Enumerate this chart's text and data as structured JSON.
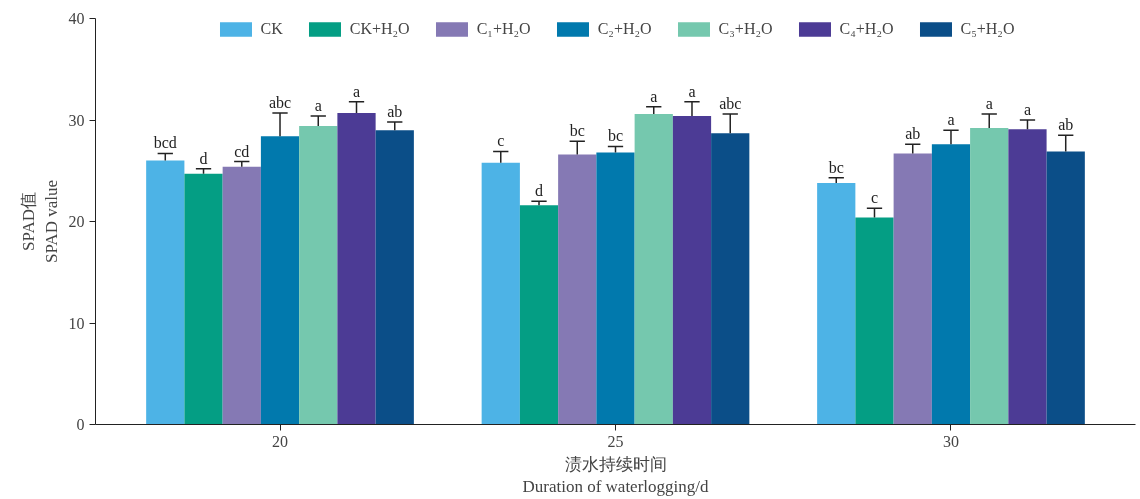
{
  "chart_data": {
    "type": "bar",
    "xlabel": "渍水持续时间\nDuration of waterlogging/d",
    "ylabel": "SPAD值\nSPAD value",
    "categories": [
      "20",
      "25",
      "30"
    ],
    "ylim": [
      0,
      40
    ],
    "yticks": [
      0,
      10,
      20,
      30,
      40
    ],
    "grid": false,
    "legend": "top",
    "series": [
      {
        "name": "CK",
        "color": "#4db3e6",
        "values": [
          26.0,
          25.8,
          23.8
        ],
        "errors": [
          [
            26.0,
            26.7
          ],
          [
            25.8,
            26.9
          ],
          [
            23.8,
            24.3
          ]
        ],
        "value_labels": [
          "bcd",
          "c",
          "bc"
        ]
      },
      {
        "name": "CK+H₂O",
        "color": "#049e84",
        "values": [
          24.7,
          21.6,
          20.4
        ],
        "errors": [
          [
            24.7,
            25.2
          ],
          [
            21.6,
            22.0
          ],
          [
            20.4,
            21.3
          ]
        ],
        "value_labels": [
          "d",
          "d",
          "c"
        ]
      },
      {
        "name": "C₁+H₂O",
        "color": "#8579b4",
        "values": [
          25.4,
          26.6,
          26.7
        ],
        "errors": [
          [
            25.4,
            25.9
          ],
          [
            26.6,
            27.9
          ],
          [
            26.7,
            27.6
          ]
        ],
        "value_labels": [
          "cd",
          "bc",
          "ab"
        ]
      },
      {
        "name": "C₂+H₂O",
        "color": "#0179ad",
        "values": [
          28.4,
          26.8,
          27.6
        ],
        "errors": [
          [
            28.4,
            30.7
          ],
          [
            26.8,
            27.4
          ],
          [
            27.6,
            29.0
          ]
        ],
        "value_labels": [
          "abc",
          "bc",
          "a"
        ]
      },
      {
        "name": "C₃+H₂O",
        "color": "#75c8ae",
        "values": [
          29.4,
          30.6,
          29.2
        ],
        "errors": [
          [
            29.4,
            30.4
          ],
          [
            30.6,
            31.3
          ],
          [
            29.2,
            30.6
          ]
        ],
        "value_labels": [
          "a",
          "a",
          "a"
        ]
      },
      {
        "name": "C₄+H₂O",
        "color": "#4c3b95",
        "values": [
          30.7,
          30.4,
          29.1
        ],
        "errors": [
          [
            30.7,
            31.8
          ],
          [
            30.4,
            31.8
          ],
          [
            29.1,
            30.0
          ]
        ],
        "value_labels": [
          "a",
          "a",
          "a"
        ]
      },
      {
        "name": "C₅+H₂O",
        "color": "#0b4e88",
        "values": [
          29.0,
          28.7,
          26.9
        ],
        "errors": [
          [
            29.0,
            29.8
          ],
          [
            28.7,
            30.6
          ],
          [
            26.9,
            28.5
          ]
        ],
        "value_labels": [
          "ab",
          "abc",
          "ab"
        ]
      }
    ]
  }
}
